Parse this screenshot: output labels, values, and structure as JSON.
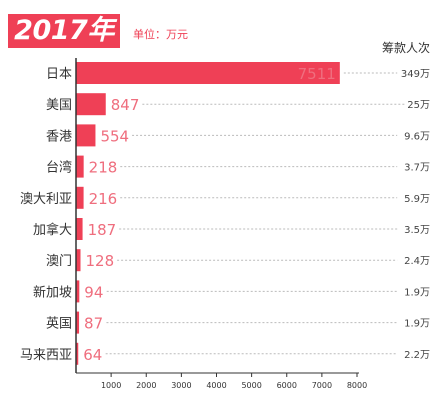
{
  "header": {
    "title": "2017年",
    "unit": "单位：万元"
  },
  "colors": {
    "accent": "#ef4056",
    "label_value": "#ef6e7e",
    "axis": "#333333",
    "dotted": "#bbbbbb",
    "right_text": "#444444"
  },
  "chart_data": {
    "type": "bar",
    "orientation": "horizontal",
    "title": "2017年",
    "unit": "单位：万元",
    "categories": [
      "日本",
      "美国",
      "香港",
      "台湾",
      "澳大利亚",
      "加拿大",
      "澳门",
      "新加坡",
      "英国",
      "马来西亚"
    ],
    "values": [
      7511,
      847,
      554,
      218,
      216,
      187,
      128,
      94,
      87,
      64
    ],
    "value_labels": [
      "7511",
      "847",
      "554",
      "218",
      "216",
      "187",
      "128",
      "94",
      "87",
      "64"
    ],
    "right_column_title": "筹款人次",
    "right_column": [
      "349万",
      "25万",
      "9.6万",
      "3.7万",
      "5.9万",
      "3.5万",
      "2.4万",
      "1.9万",
      "1.9万",
      "2.2万"
    ],
    "xlim": [
      0,
      8000
    ],
    "xticks": [
      "1000",
      "2000",
      "3000",
      "4000",
      "5000",
      "6000",
      "7000",
      "8000"
    ],
    "xtick_values": [
      1000,
      2000,
      3000,
      4000,
      5000,
      6000,
      7000,
      8000
    ],
    "grid": false,
    "legend": "none"
  }
}
